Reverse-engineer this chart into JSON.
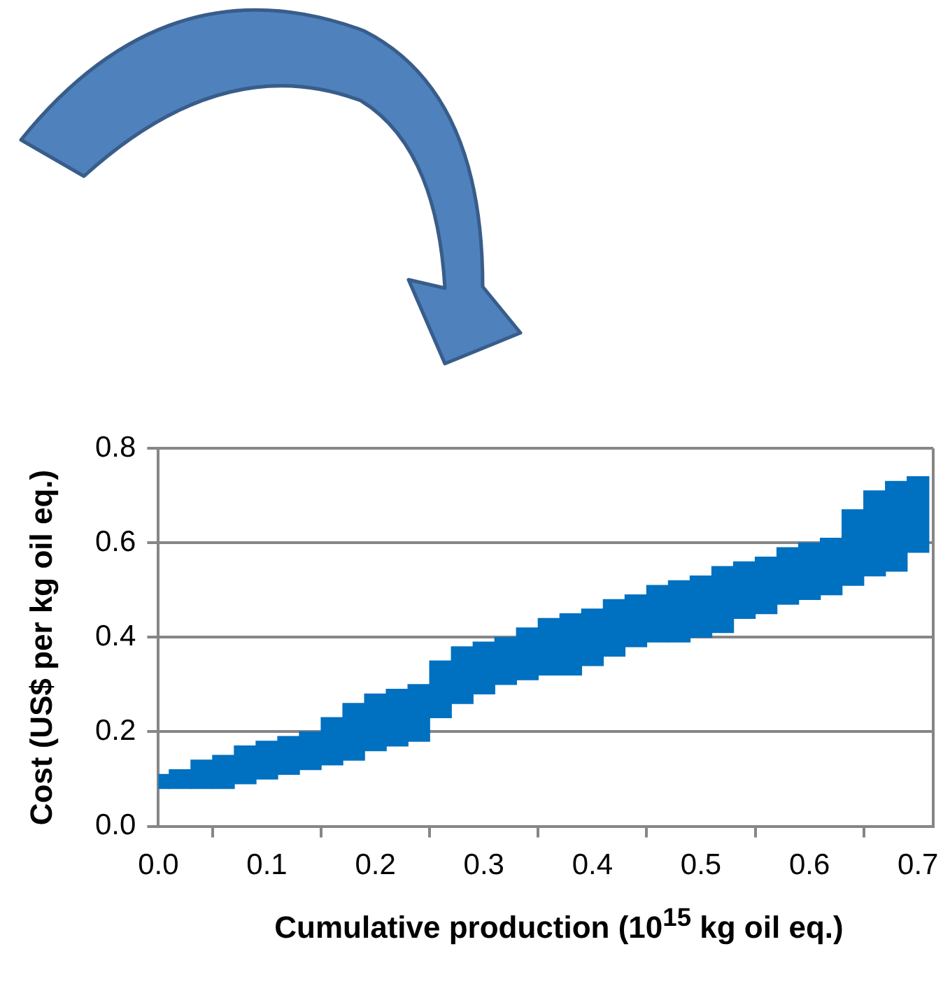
{
  "chart_data": {
    "type": "bar",
    "xlabel": "Cumulative production (10$^{15}$ kg oil eq.)",
    "ylabel": "Cost (US$ per kg oil eq.)",
    "x": [
      0,
      0.02,
      0.04,
      0.06,
      0.08,
      0.1,
      0.12,
      0.14,
      0.16,
      0.18,
      0.2,
      0.22,
      0.24,
      0.26,
      0.28,
      0.3,
      0.32,
      0.34,
      0.36,
      0.38,
      0.4,
      0.42,
      0.44,
      0.46,
      0.48,
      0.5,
      0.52,
      0.54,
      0.56,
      0.58,
      0.6,
      0.62,
      0.64,
      0.66,
      0.68,
      0.7
    ],
    "base": [
      0.08,
      0.08,
      0.08,
      0.08,
      0.09,
      0.1,
      0.11,
      0.12,
      0.13,
      0.14,
      0.16,
      0.17,
      0.18,
      0.23,
      0.26,
      0.28,
      0.3,
      0.31,
      0.32,
      0.32,
      0.34,
      0.36,
      0.38,
      0.39,
      0.39,
      0.4,
      0.41,
      0.44,
      0.45,
      0.47,
      0.48,
      0.49,
      0.51,
      0.53,
      0.54,
      0.58
    ],
    "values": [
      0.03,
      0.04,
      0.06,
      0.07,
      0.08,
      0.08,
      0.08,
      0.08,
      0.1,
      0.12,
      0.12,
      0.12,
      0.12,
      0.12,
      0.12,
      0.11,
      0.1,
      0.11,
      0.12,
      0.13,
      0.12,
      0.12,
      0.11,
      0.12,
      0.13,
      0.13,
      0.14,
      0.12,
      0.12,
      0.12,
      0.12,
      0.12,
      0.16,
      0.18,
      0.19,
      0.16
    ],
    "color": "#0070c0",
    "xlim": [
      0,
      0.714
    ],
    "xticks": [
      {
        "value": 0,
        "label": "0.0"
      },
      0.1,
      0.2,
      0.3,
      0.4,
      0.5,
      0.6,
      0.7
    ],
    "ylim": [
      0,
      0.8
    ],
    "yticks": [
      {
        "value": 0,
        "label": "0.0"
      },
      0.2,
      0.4,
      0.6,
      0.8
    ],
    "grid": "y",
    "legend": false
  }
}
